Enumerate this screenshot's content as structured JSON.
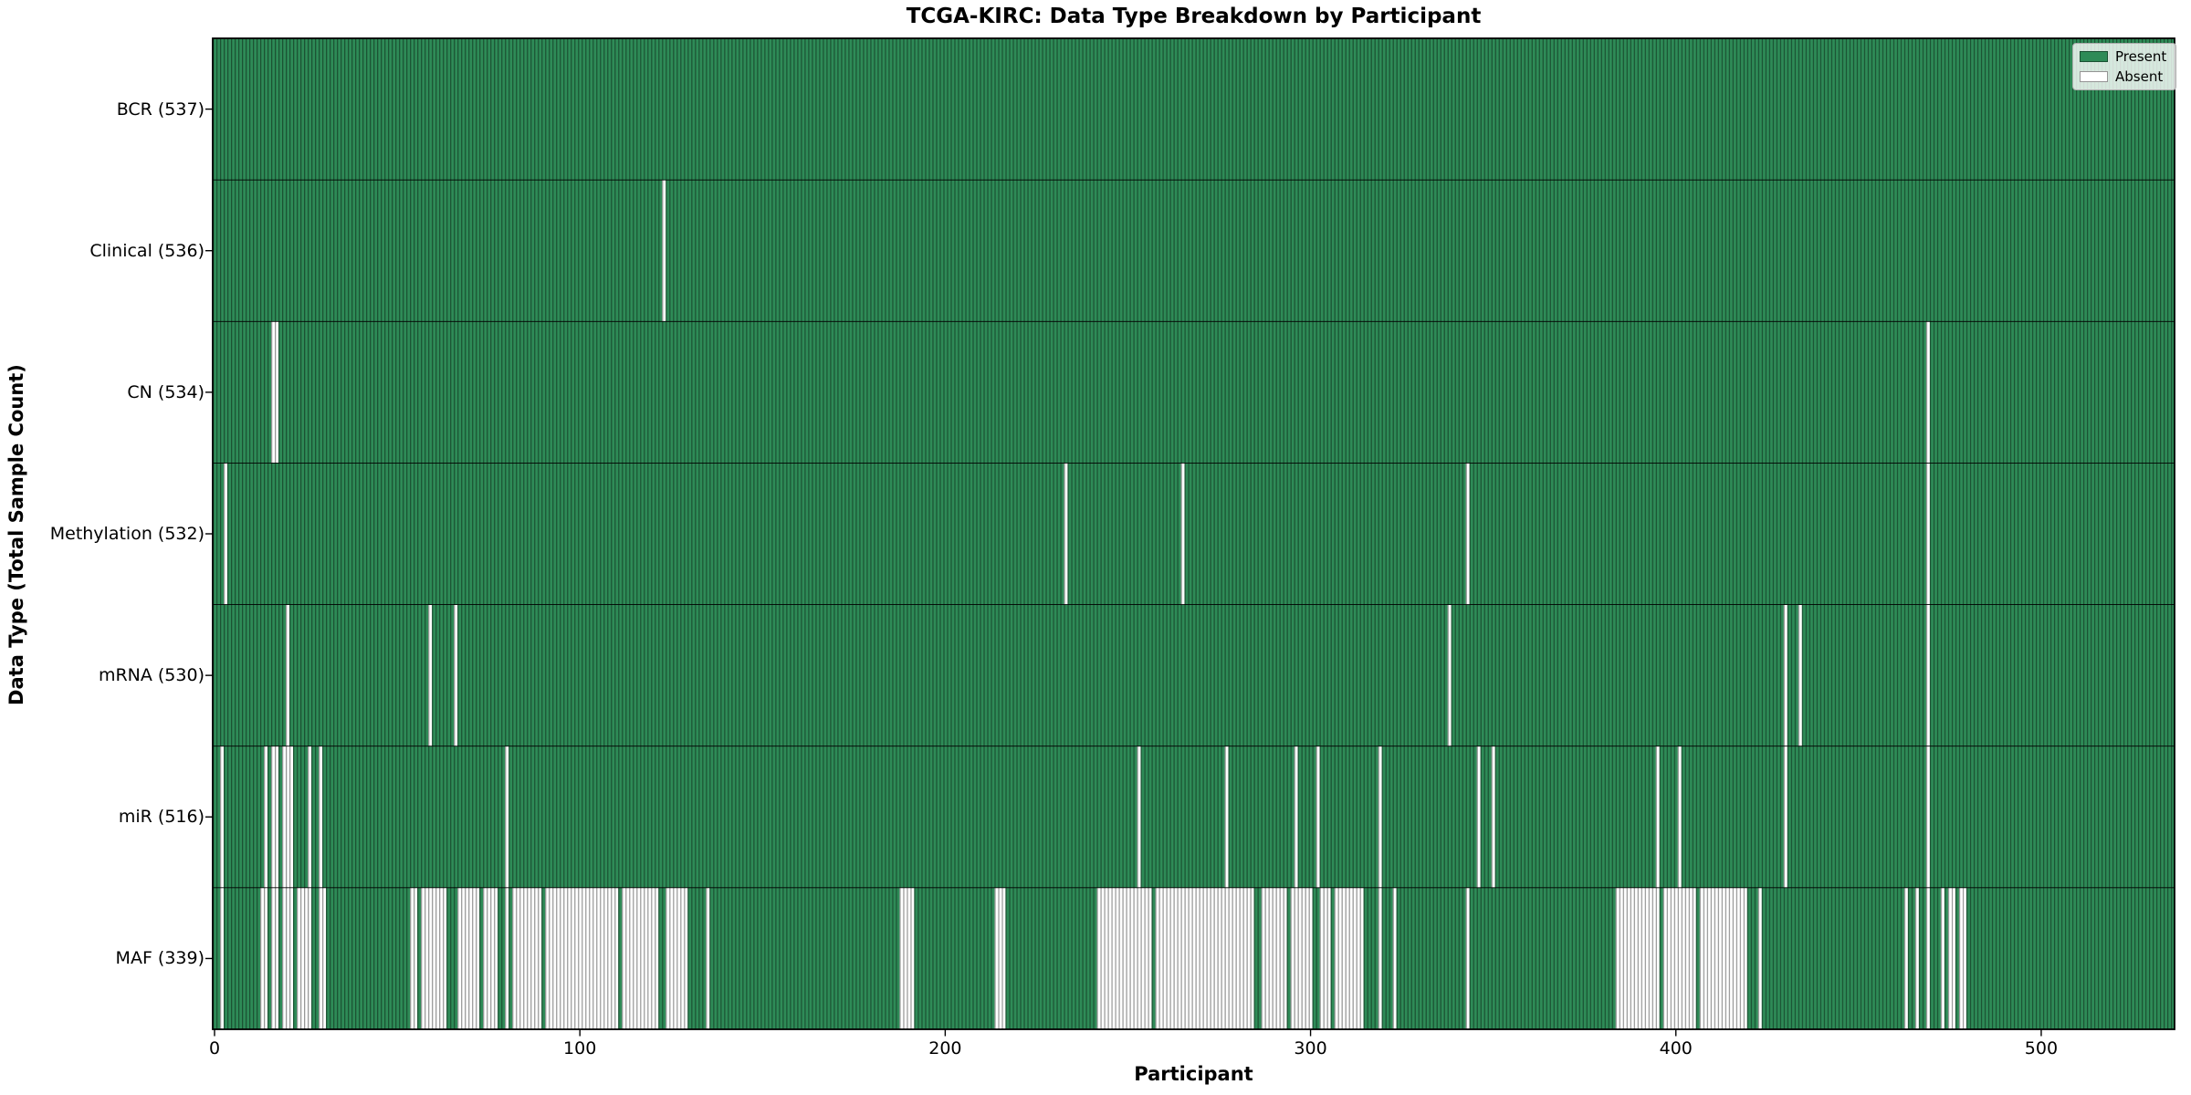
{
  "title": "TCGA-KIRC: Data Type Breakdown by Participant",
  "xlabel": "Participant",
  "ylabel": "Data Type (Total Sample Count)",
  "legend": {
    "present_label": "Present",
    "absent_label": "Absent"
  },
  "colors": {
    "present": "#2e8b57",
    "absent": "#ffffff",
    "bar_edge": "#000000",
    "bar_edge_opacity": "0.42",
    "frame": "#000000",
    "legend_border": "#adadad"
  },
  "chart_data": {
    "type": "heatmap",
    "title": "TCGA-KIRC: Data Type Breakdown by Participant",
    "xlabel": "Participant",
    "ylabel": "Data Type (Total Sample Count)",
    "legend_entries": [
      "Present",
      "Absent"
    ],
    "legend_position": "upper right",
    "grid": false,
    "n_participants": 537,
    "x_axis": {
      "ticks": [
        0,
        100,
        200,
        300,
        400,
        500
      ],
      "range": [
        0,
        537
      ]
    },
    "rows": [
      {
        "label": "BCR",
        "total": 537,
        "tick_label": "BCR (537)",
        "absent_ranges": []
      },
      {
        "label": "Clinical",
        "total": 536,
        "tick_label": "Clinical (536)",
        "absent_ranges": [
          [
            123,
            123
          ]
        ]
      },
      {
        "label": "CN",
        "total": 534,
        "tick_label": "CN (534)",
        "absent_ranges": [
          [
            16,
            17
          ],
          [
            469,
            469
          ]
        ]
      },
      {
        "label": "Methylation",
        "total": 532,
        "tick_label": "Methylation (532)",
        "absent_ranges": [
          [
            3,
            3
          ],
          [
            233,
            233
          ],
          [
            265,
            265
          ],
          [
            343,
            343
          ],
          [
            469,
            469
          ]
        ]
      },
      {
        "label": "mRNA",
        "total": 530,
        "tick_label": "mRNA (530)",
        "absent_ranges": [
          [
            20,
            20
          ],
          [
            59,
            59
          ],
          [
            66,
            66
          ],
          [
            338,
            338
          ],
          [
            430,
            430
          ],
          [
            434,
            434
          ],
          [
            469,
            469
          ]
        ]
      },
      {
        "label": "miR",
        "total": 516,
        "tick_label": "miR (516)",
        "absent_ranges": [
          [
            2,
            2
          ],
          [
            14,
            14
          ],
          [
            16,
            17
          ],
          [
            19,
            21
          ],
          [
            26,
            26
          ],
          [
            29,
            29
          ],
          [
            80,
            80
          ],
          [
            253,
            253
          ],
          [
            277,
            277
          ],
          [
            296,
            296
          ],
          [
            302,
            302
          ],
          [
            319,
            319
          ],
          [
            346,
            346
          ],
          [
            350,
            350
          ],
          [
            395,
            395
          ],
          [
            401,
            401
          ],
          [
            430,
            430
          ],
          [
            469,
            469
          ]
        ]
      },
      {
        "label": "MAF",
        "total": 339,
        "tick_label": "MAF (339)",
        "absent_ranges": [
          [
            2,
            2
          ],
          [
            13,
            14
          ],
          [
            16,
            17
          ],
          [
            19,
            21
          ],
          [
            23,
            26
          ],
          [
            29,
            30
          ],
          [
            54,
            55
          ],
          [
            57,
            63
          ],
          [
            67,
            72
          ],
          [
            74,
            77
          ],
          [
            80,
            80
          ],
          [
            82,
            89
          ],
          [
            91,
            110
          ],
          [
            112,
            121
          ],
          [
            124,
            129
          ],
          [
            135,
            135
          ],
          [
            188,
            191
          ],
          [
            214,
            216
          ],
          [
            242,
            256
          ],
          [
            258,
            284
          ],
          [
            287,
            293
          ],
          [
            295,
            300
          ],
          [
            303,
            305
          ],
          [
            307,
            314
          ],
          [
            319,
            319
          ],
          [
            323,
            323
          ],
          [
            343,
            343
          ],
          [
            384,
            395
          ],
          [
            397,
            405
          ],
          [
            407,
            419
          ],
          [
            423,
            423
          ],
          [
            463,
            463
          ],
          [
            466,
            466
          ],
          [
            469,
            469
          ],
          [
            473,
            473
          ],
          [
            475,
            476
          ],
          [
            478,
            479
          ]
        ]
      }
    ]
  }
}
